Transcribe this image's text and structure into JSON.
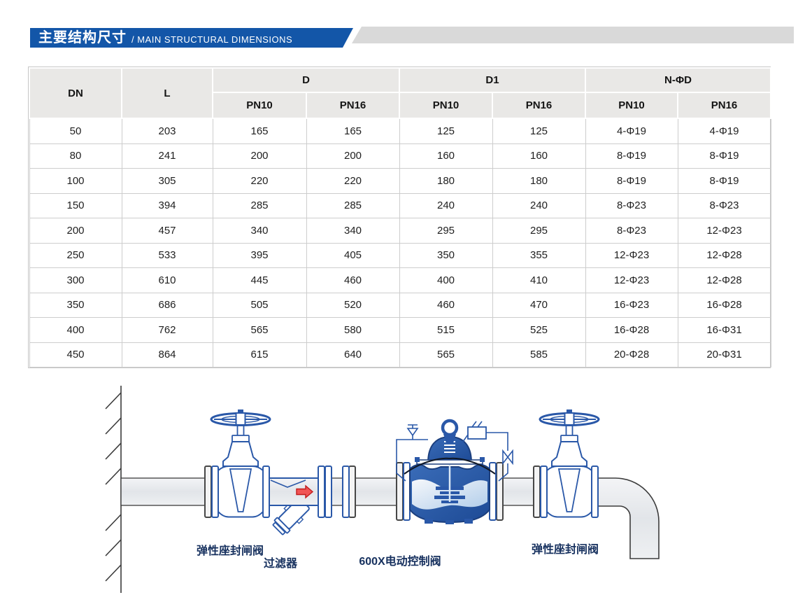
{
  "banner": {
    "title_zh": "主要结构尺寸",
    "title_en": "/ MAIN STRUCTURAL DIMENSIONS",
    "accent_color": "#1356a8",
    "bar_color": "#d9d9d9"
  },
  "table": {
    "headers": {
      "dn": "DN",
      "l": "L",
      "d": "D",
      "d1": "D1",
      "nphid": "N-ΦD",
      "pn10": "PN10",
      "pn16": "PN16"
    },
    "rows": [
      [
        "50",
        "203",
        "165",
        "165",
        "125",
        "125",
        "4-Φ19",
        "4-Φ19"
      ],
      [
        "80",
        "241",
        "200",
        "200",
        "160",
        "160",
        "8-Φ19",
        "8-Φ19"
      ],
      [
        "100",
        "305",
        "220",
        "220",
        "180",
        "180",
        "8-Φ19",
        "8-Φ19"
      ],
      [
        "150",
        "394",
        "285",
        "285",
        "240",
        "240",
        "8-Φ23",
        "8-Φ23"
      ],
      [
        "200",
        "457",
        "340",
        "340",
        "295",
        "295",
        "8-Φ23",
        "12-Φ23"
      ],
      [
        "250",
        "533",
        "395",
        "405",
        "350",
        "355",
        "12-Φ23",
        "12-Φ28"
      ],
      [
        "300",
        "610",
        "445",
        "460",
        "400",
        "410",
        "12-Φ23",
        "12-Φ28"
      ],
      [
        "350",
        "686",
        "505",
        "520",
        "460",
        "470",
        "16-Φ23",
        "16-Φ28"
      ],
      [
        "400",
        "762",
        "565",
        "580",
        "515",
        "525",
        "16-Φ28",
        "16-Φ31"
      ],
      [
        "450",
        "864",
        "615",
        "640",
        "565",
        "585",
        "20-Φ28",
        "20-Φ31"
      ]
    ]
  },
  "diagram": {
    "labels": {
      "gate_valve_left": "弹性座封闸阀",
      "strainer": "过滤器",
      "control_valve": "600X电动控制阀",
      "gate_valve_right": "弹性座封闸阀"
    },
    "colors": {
      "valve_outline": "#2a58a8",
      "valve_fill_dark": "#1d4a95",
      "pipe_fill": "#e9ecef",
      "flow_arrow": "#e04040",
      "label_text": "#16305e"
    }
  }
}
